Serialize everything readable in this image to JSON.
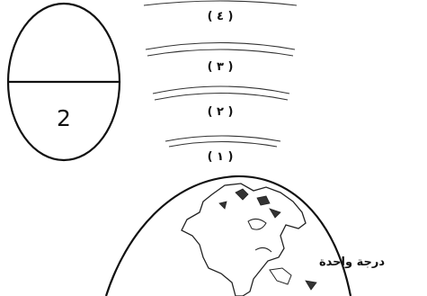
{
  "score_box": {
    "top_value": "",
    "bottom_value": "2"
  },
  "atmosphere": {
    "layers": [
      {
        "label": "( ١ )"
      },
      {
        "label": "( ٢ )"
      },
      {
        "label": "( ٣ )"
      },
      {
        "label": "( ٤ )"
      }
    ]
  },
  "caption": "درجة واحدة",
  "colors": {
    "ink": "#111111",
    "background": "#ffffff"
  }
}
